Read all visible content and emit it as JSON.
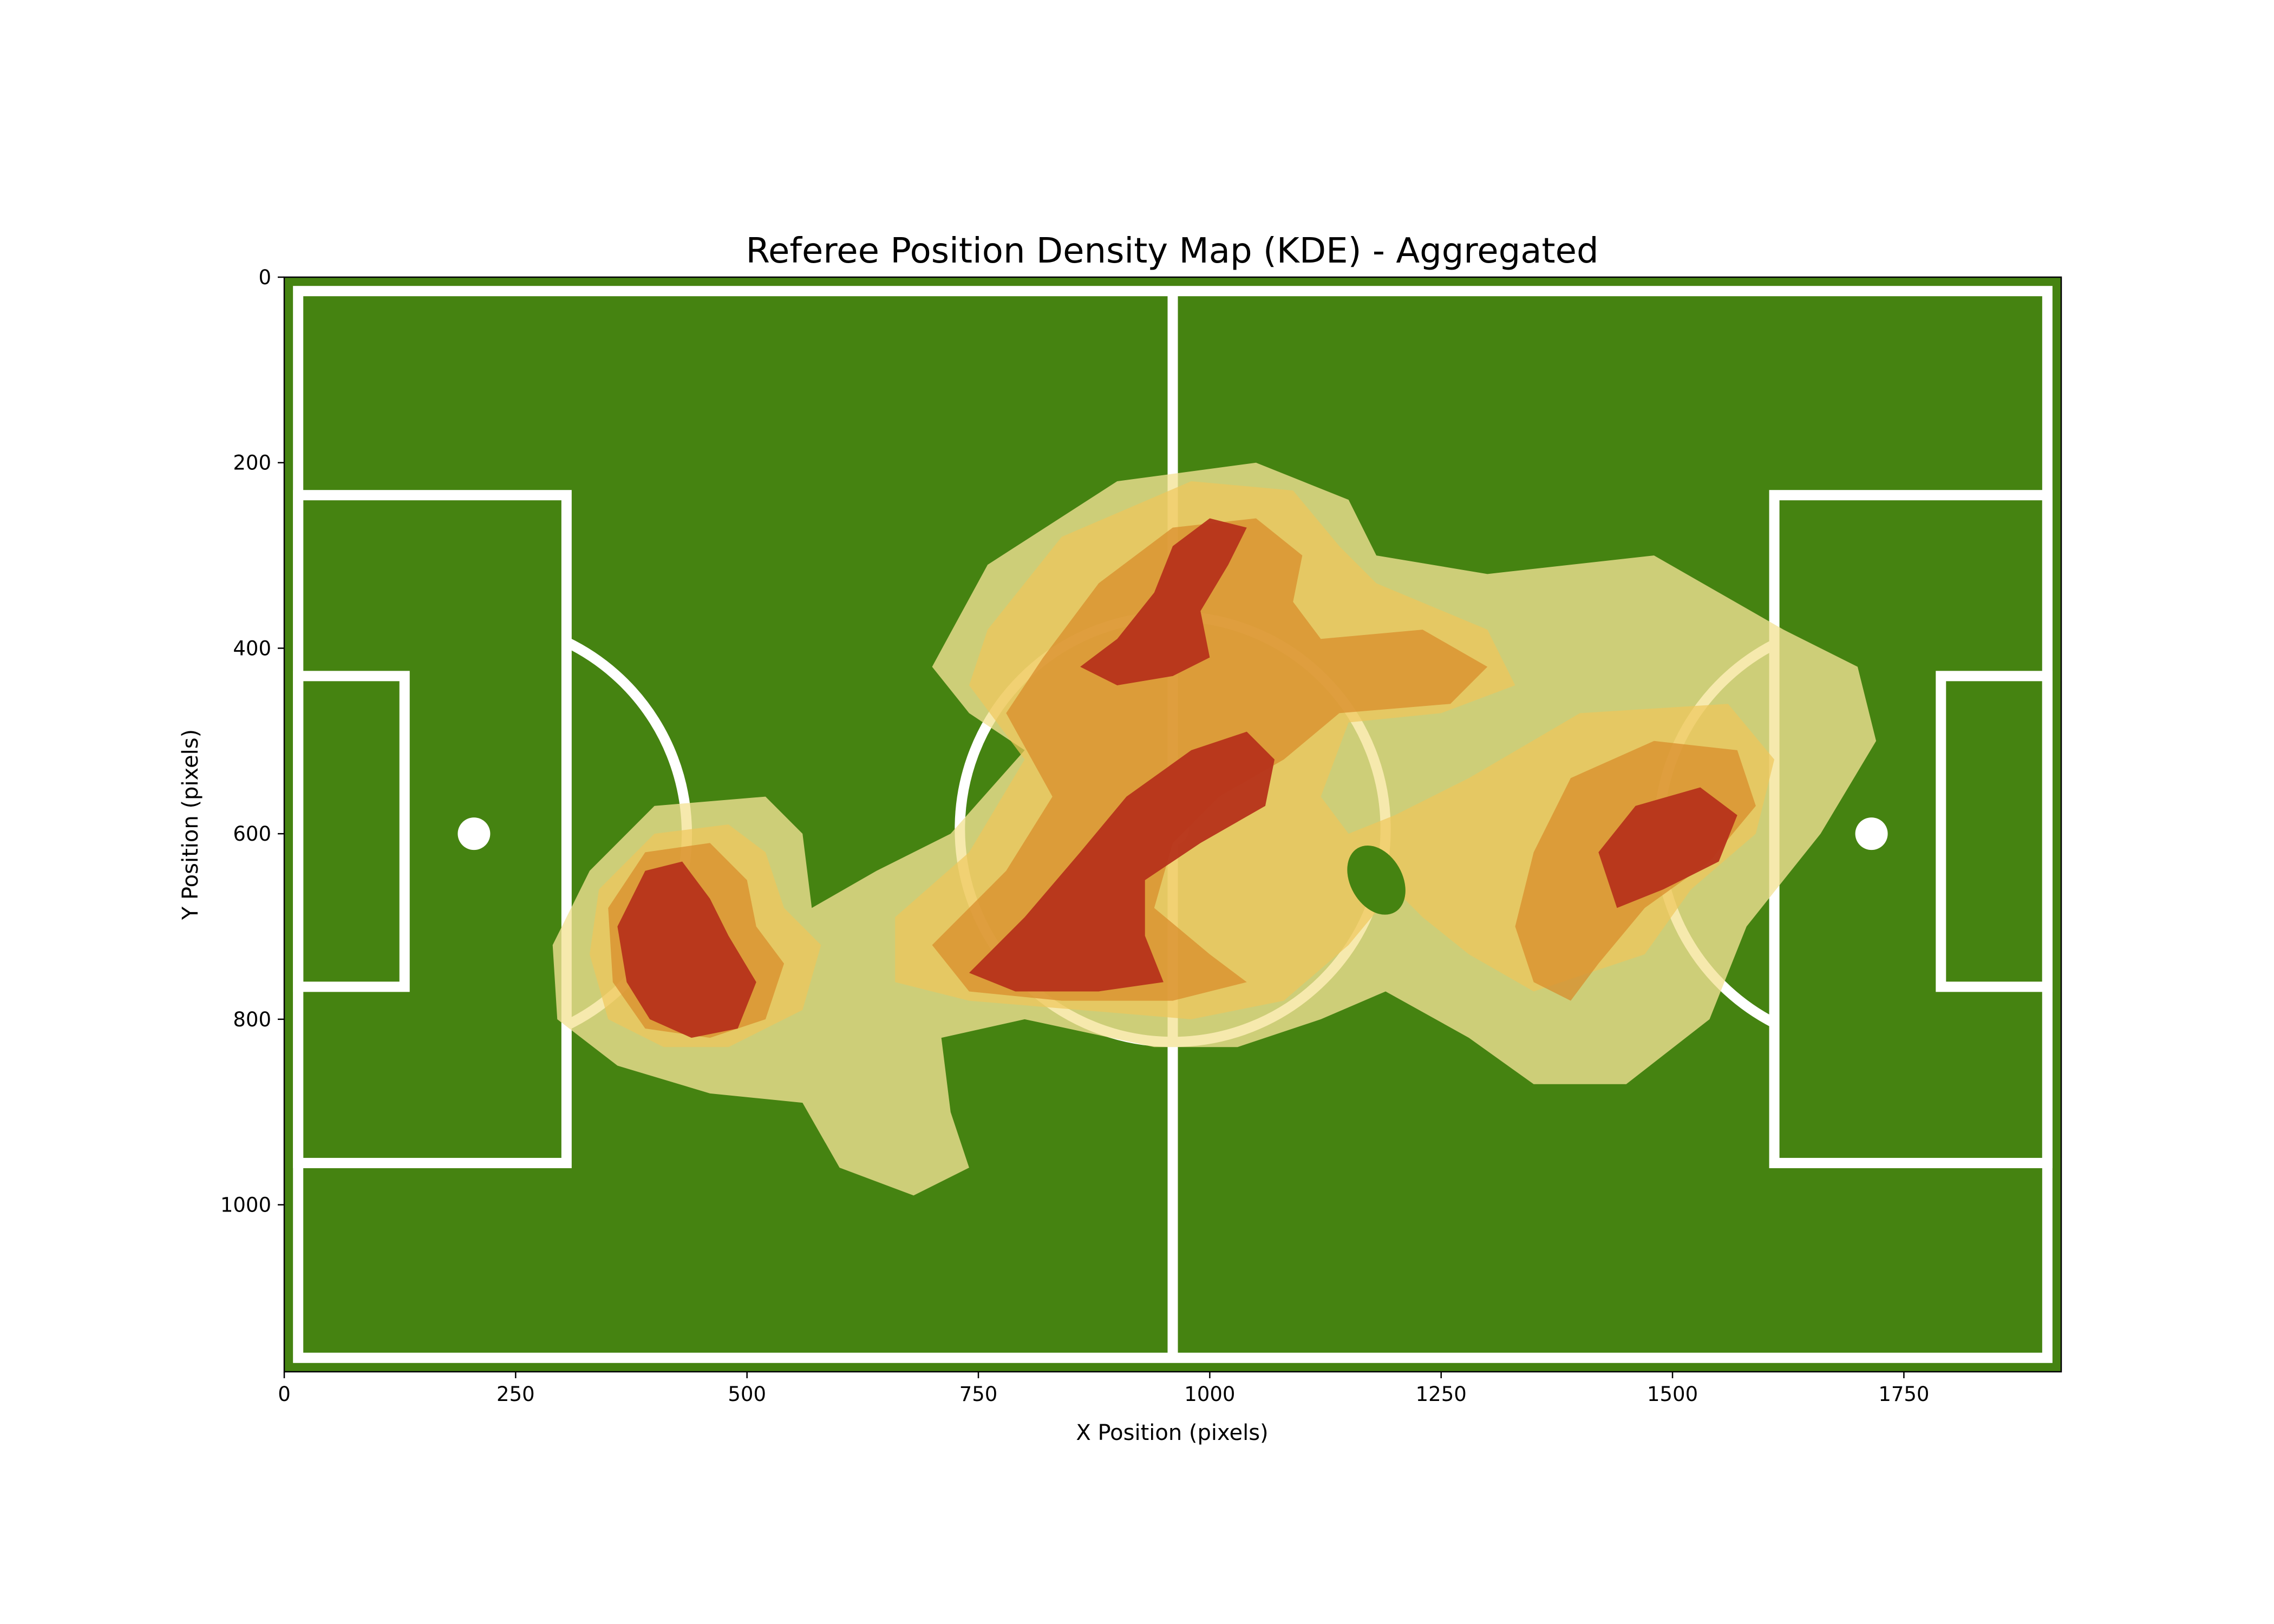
{
  "chart_data": {
    "type": "heatmap",
    "title": "Referee Position Density Map (KDE) - Aggregated",
    "xlabel": "X Position (pixels)",
    "ylabel": "Y Position (pixels)",
    "xlim": [
      0,
      1920
    ],
    "ylim": [
      1180,
      0
    ],
    "y_inverted": true,
    "x_ticks": [
      0,
      250,
      500,
      750,
      1000,
      1250,
      1500,
      1750
    ],
    "y_ticks": [
      0,
      200,
      400,
      600,
      800,
      1000
    ],
    "grid": false,
    "legend": "none",
    "pitch": {
      "color": "#458311",
      "line_color": "#ffffff",
      "outer": [
        15,
        1905,
        15,
        1165
      ],
      "halfway_x": 960,
      "center_spot": [
        960,
        595
      ],
      "center_circle_radius": 230,
      "left_penalty_box": [
        15,
        305,
        235,
        955
      ],
      "right_penalty_box": [
        1610,
        1905,
        235,
        955
      ],
      "left_goal_box": [
        15,
        130,
        430,
        765
      ],
      "right_goal_box": [
        1790,
        1905,
        430,
        765
      ],
      "left_penalty_spot": [
        205,
        600
      ],
      "right_penalty_spot": [
        1715,
        600
      ]
    },
    "density_levels": [
      {
        "level": 1,
        "color": "#f3e396",
        "opacity": 0.78
      },
      {
        "level": 2,
        "color": "#efc65a",
        "opacity": 0.7
      },
      {
        "level": 3,
        "color": "#d88a2a",
        "opacity": 0.72
      },
      {
        "level": 4,
        "color": "#b6331a",
        "opacity": 0.95
      }
    ],
    "hotspots": [
      {
        "x": 430,
        "y": 720,
        "peak": 1.0
      },
      {
        "x": 870,
        "y": 640,
        "peak": 1.0
      },
      {
        "x": 1000,
        "y": 570,
        "peak": 0.85
      },
      {
        "x": 910,
        "y": 410,
        "peak": 0.95
      },
      {
        "x": 950,
        "y": 300,
        "peak": 0.9
      },
      {
        "x": 1450,
        "y": 600,
        "peak": 1.0
      },
      {
        "x": 1250,
        "y": 400,
        "peak": 0.7
      }
    ]
  }
}
